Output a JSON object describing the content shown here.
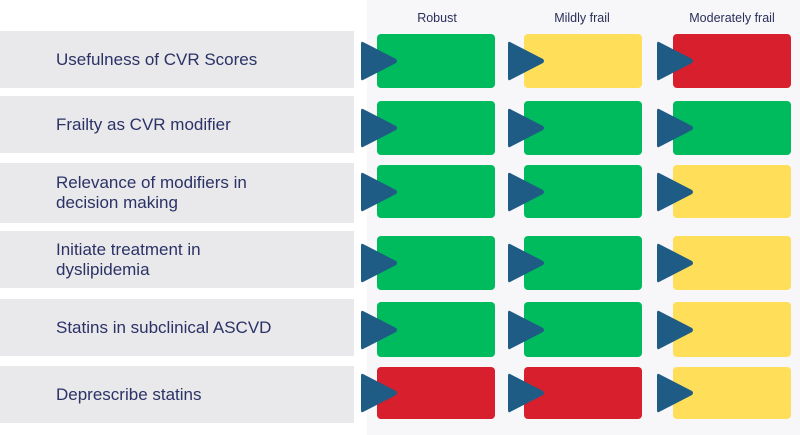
{
  "colors": {
    "green": "#00bb5d",
    "yellow": "#ffdf5a",
    "red": "#d71f2d",
    "arrow": "#1e5c85",
    "label_bg": "#e9e8ea",
    "text": "#2b3266"
  },
  "columns": [
    "Robust",
    "Mildly frail",
    "Moderately frail"
  ],
  "rows": [
    {
      "label": "Usefulness of CVR Scores",
      "status": [
        "green",
        "yellow",
        "red"
      ]
    },
    {
      "label": "Frailty as CVR modifier",
      "status": [
        "green",
        "green",
        "green"
      ]
    },
    {
      "label": "Relevance of modifiers in decision making",
      "status": [
        "green",
        "green",
        "yellow"
      ]
    },
    {
      "label": "Initiate treatment in dyslipidemia",
      "status": [
        "green",
        "green",
        "yellow"
      ]
    },
    {
      "label": "Statins in subclinical ASCVD",
      "status": [
        "green",
        "green",
        "yellow"
      ]
    },
    {
      "label": "Deprescribe statins",
      "status": [
        "red",
        "red",
        "yellow"
      ]
    }
  ],
  "icons": {
    "arrow": "play-arrow-icon"
  }
}
